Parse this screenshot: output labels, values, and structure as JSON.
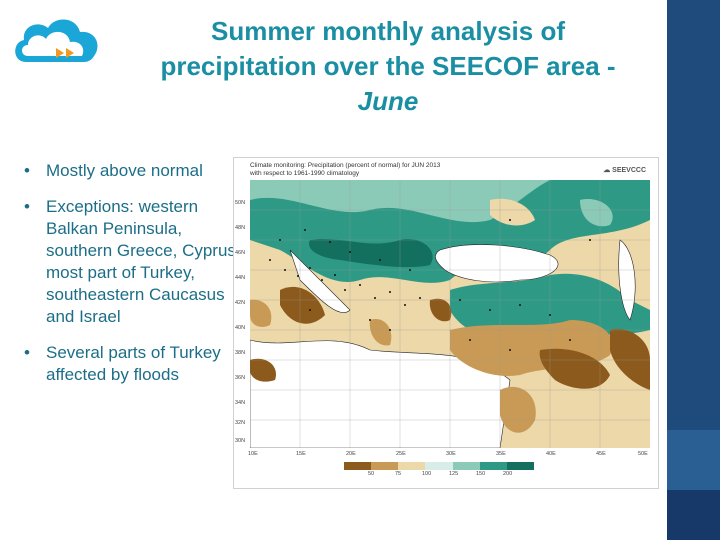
{
  "title": {
    "line1": "Summer monthly analysis of",
    "line2": "precipitation over the SEECOF area -",
    "line3": "June"
  },
  "bullets": [
    "Mostly above normal",
    "Exceptions: western Balkan Peninsula, southern Greece, Cyprus, most part of Turkey, southeastern Caucasus and Israel",
    "Several parts of Turkey affected by floods"
  ],
  "bullet_symbol": "•",
  "map": {
    "title_line1": "Climate monitoring: Precipitation (percent of normal) for JUN 2013",
    "title_line2": "with respect to 1961-1990 climatology",
    "brand": "SEEVCCC",
    "lat_labels": [
      "50N",
      "48N",
      "46N",
      "44N",
      "42N",
      "40N",
      "38N",
      "36N",
      "34N",
      "32N",
      "30N"
    ],
    "lon_labels": [
      "10E",
      "15E",
      "20E",
      "25E",
      "30E",
      "35E",
      "40E",
      "45E",
      "50E"
    ],
    "scale_labels": [
      "50",
      "75",
      "100",
      "125",
      "150",
      "200"
    ],
    "scale_colors": [
      "#8c5a1c",
      "#c89a55",
      "#ecd8a8",
      "#d8ece8",
      "#8ccab8",
      "#2e9a86",
      "#14705e"
    ]
  },
  "colors": {
    "title": "#1a8fa3",
    "text": "#1c6e88",
    "sidebar": "#1f4a7c",
    "logo": "#1ba6d8",
    "logo_arrow": "#f29a1f"
  }
}
